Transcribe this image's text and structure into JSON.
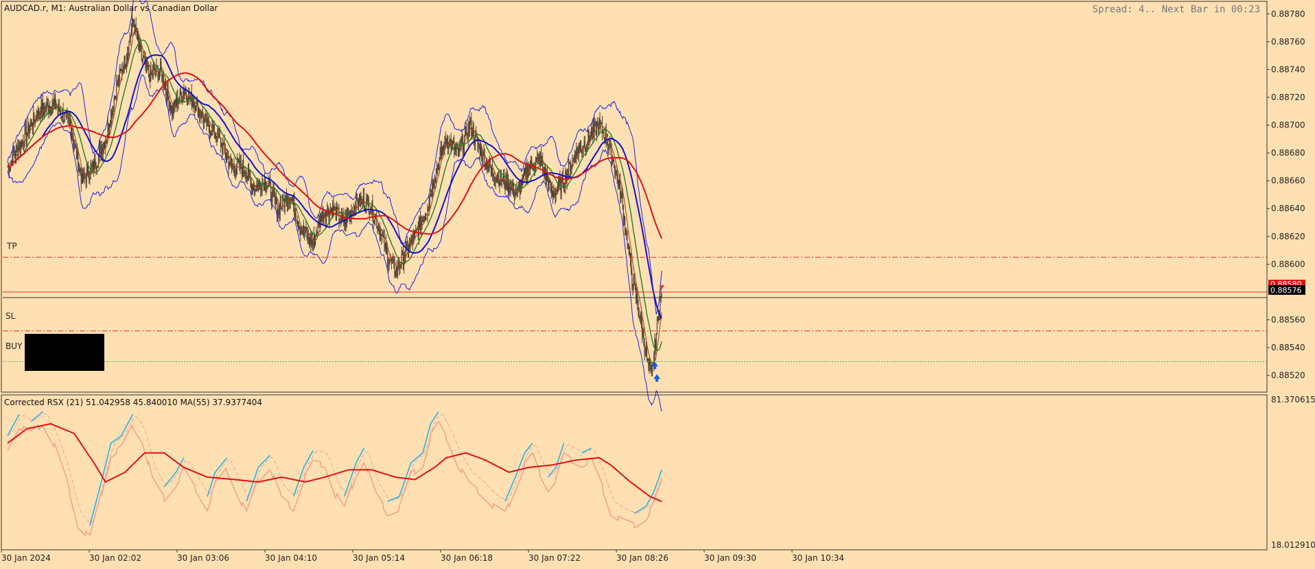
{
  "window": {
    "title": "AUDCAD.r, M1:  Australian Dollar vs Canadian Dollar",
    "status": "Spread: 4.. Next Bar in 00:23"
  },
  "colors": {
    "background": "#FFE0B2",
    "candle": "#4A3F33",
    "bollinger": "#2020E0",
    "ma_fast": "#B05020",
    "ma_mid": "#208020",
    "ma_slow": "#1010D0",
    "ma_long": "#E01010",
    "rsx_up": "#1EB4F0",
    "rsx_down": "#F5A08C",
    "rsx_ma": "#E01010",
    "level_line": "#E03030",
    "buy_line": "#40C040"
  },
  "price_axis": {
    "ticks": [
      "0.88780",
      "0.88760",
      "0.88740",
      "0.88720",
      "0.88700",
      "0.88680",
      "0.88660",
      "0.88640",
      "0.88620",
      "0.88600",
      "0.88560",
      "0.88540",
      "0.88520"
    ],
    "ask_label": "0.88580",
    "bid_label": "0.88576"
  },
  "levels": {
    "tp_label": "TP",
    "sl_label": "SL",
    "buy_label": "BUY",
    "tp": 0.88605,
    "sl": 0.88552,
    "buy": 0.8853,
    "ask": 0.8858,
    "bid": 0.88576
  },
  "time_axis": {
    "labels": [
      "30 Jan 2024",
      "30 Jan 02:02",
      "30 Jan 03:06",
      "30 Jan 04:10",
      "30 Jan 05:14",
      "30 Jan 06:18",
      "30 Jan 07:22",
      "30 Jan 08:26",
      "30 Jan 09:30",
      "30 Jan 10:34"
    ]
  },
  "indicator": {
    "title": "Corrected RSX (21) 51.042958 45.840010 MA(55) 37.9377404",
    "axis_max": "81.370615",
    "axis_min": "18.012910"
  },
  "chart_data": {
    "type": "line",
    "symbol": "AUDCAD.r",
    "timeframe": "M1",
    "ylim": [
      0.88508,
      0.88789
    ],
    "indicator_ylim": [
      18.01291,
      81.370615
    ],
    "price_close": [
      {
        "t": 0,
        "v": 0.8867
      },
      {
        "t": 20,
        "v": 0.8869
      },
      {
        "t": 40,
        "v": 0.8871
      },
      {
        "t": 60,
        "v": 0.88715
      },
      {
        "t": 80,
        "v": 0.887
      },
      {
        "t": 95,
        "v": 0.8866
      },
      {
        "t": 110,
        "v": 0.8867
      },
      {
        "t": 125,
        "v": 0.8869
      },
      {
        "t": 140,
        "v": 0.8873
      },
      {
        "t": 152,
        "v": 0.8875
      },
      {
        "t": 160,
        "v": 0.88775
      },
      {
        "t": 170,
        "v": 0.8875
      },
      {
        "t": 182,
        "v": 0.88735
      },
      {
        "t": 195,
        "v": 0.8874
      },
      {
        "t": 210,
        "v": 0.8871
      },
      {
        "t": 225,
        "v": 0.88725
      },
      {
        "t": 240,
        "v": 0.88715
      },
      {
        "t": 255,
        "v": 0.887
      },
      {
        "t": 270,
        "v": 0.8869
      },
      {
        "t": 285,
        "v": 0.8867
      },
      {
        "t": 300,
        "v": 0.8867
      },
      {
        "t": 315,
        "v": 0.88655
      },
      {
        "t": 330,
        "v": 0.8866
      },
      {
        "t": 345,
        "v": 0.8864
      },
      {
        "t": 360,
        "v": 0.8865
      },
      {
        "t": 375,
        "v": 0.88625
      },
      {
        "t": 390,
        "v": 0.88615
      },
      {
        "t": 400,
        "v": 0.88635
      },
      {
        "t": 415,
        "v": 0.8864
      },
      {
        "t": 430,
        "v": 0.8863
      },
      {
        "t": 445,
        "v": 0.88645
      },
      {
        "t": 460,
        "v": 0.88645
      },
      {
        "t": 475,
        "v": 0.88625
      },
      {
        "t": 485,
        "v": 0.88605
      },
      {
        "t": 495,
        "v": 0.88595
      },
      {
        "t": 505,
        "v": 0.88605
      },
      {
        "t": 520,
        "v": 0.8862
      },
      {
        "t": 535,
        "v": 0.8864
      },
      {
        "t": 548,
        "v": 0.8867
      },
      {
        "t": 560,
        "v": 0.8869
      },
      {
        "t": 575,
        "v": 0.8868
      },
      {
        "t": 590,
        "v": 0.887
      },
      {
        "t": 605,
        "v": 0.8868
      },
      {
        "t": 620,
        "v": 0.88665
      },
      {
        "t": 635,
        "v": 0.8866
      },
      {
        "t": 650,
        "v": 0.8865
      },
      {
        "t": 665,
        "v": 0.8867
      },
      {
        "t": 680,
        "v": 0.88675
      },
      {
        "t": 695,
        "v": 0.8865
      },
      {
        "t": 710,
        "v": 0.8866
      },
      {
        "t": 725,
        "v": 0.8868
      },
      {
        "t": 740,
        "v": 0.8869
      },
      {
        "t": 755,
        "v": 0.887
      },
      {
        "t": 765,
        "v": 0.8869
      },
      {
        "t": 775,
        "v": 0.8867
      },
      {
        "t": 783,
        "v": 0.8865
      },
      {
        "t": 790,
        "v": 0.8862
      },
      {
        "t": 797,
        "v": 0.8859
      },
      {
        "t": 805,
        "v": 0.8857
      },
      {
        "t": 812,
        "v": 0.88545
      },
      {
        "t": 817,
        "v": 0.88528
      },
      {
        "t": 822,
        "v": 0.8852
      },
      {
        "t": 827,
        "v": 0.88545
      },
      {
        "t": 832,
        "v": 0.8857
      },
      {
        "t": 835,
        "v": 0.88576
      }
    ],
    "rsx": [
      {
        "t": 0,
        "v": 65
      },
      {
        "t": 15,
        "v": 74
      },
      {
        "t": 30,
        "v": 71
      },
      {
        "t": 45,
        "v": 75
      },
      {
        "t": 60,
        "v": 66
      },
      {
        "t": 75,
        "v": 52
      },
      {
        "t": 90,
        "v": 33
      },
      {
        "t": 105,
        "v": 28
      },
      {
        "t": 118,
        "v": 44
      },
      {
        "t": 132,
        "v": 62
      },
      {
        "t": 145,
        "v": 65
      },
      {
        "t": 160,
        "v": 74
      },
      {
        "t": 172,
        "v": 68
      },
      {
        "t": 185,
        "v": 52
      },
      {
        "t": 200,
        "v": 44
      },
      {
        "t": 215,
        "v": 50
      },
      {
        "t": 225,
        "v": 56
      },
      {
        "t": 240,
        "v": 48
      },
      {
        "t": 255,
        "v": 40
      },
      {
        "t": 265,
        "v": 50
      },
      {
        "t": 280,
        "v": 56
      },
      {
        "t": 295,
        "v": 45
      },
      {
        "t": 305,
        "v": 38
      },
      {
        "t": 320,
        "v": 52
      },
      {
        "t": 335,
        "v": 57
      },
      {
        "t": 350,
        "v": 44
      },
      {
        "t": 365,
        "v": 40
      },
      {
        "t": 378,
        "v": 52
      },
      {
        "t": 390,
        "v": 59
      },
      {
        "t": 405,
        "v": 58
      },
      {
        "t": 418,
        "v": 46
      },
      {
        "t": 430,
        "v": 40
      },
      {
        "t": 445,
        "v": 54
      },
      {
        "t": 455,
        "v": 60
      },
      {
        "t": 470,
        "v": 46
      },
      {
        "t": 485,
        "v": 38
      },
      {
        "t": 500,
        "v": 40
      },
      {
        "t": 515,
        "v": 54
      },
      {
        "t": 530,
        "v": 58
      },
      {
        "t": 540,
        "v": 70
      },
      {
        "t": 550,
        "v": 75
      },
      {
        "t": 562,
        "v": 68
      },
      {
        "t": 575,
        "v": 58
      },
      {
        "t": 590,
        "v": 50
      },
      {
        "t": 605,
        "v": 46
      },
      {
        "t": 620,
        "v": 41
      },
      {
        "t": 635,
        "v": 38
      },
      {
        "t": 648,
        "v": 48
      },
      {
        "t": 660,
        "v": 58
      },
      {
        "t": 670,
        "v": 62
      },
      {
        "t": 680,
        "v": 54
      },
      {
        "t": 690,
        "v": 48
      },
      {
        "t": 700,
        "v": 52
      },
      {
        "t": 710,
        "v": 62
      },
      {
        "t": 720,
        "v": 60
      },
      {
        "t": 733,
        "v": 58
      },
      {
        "t": 745,
        "v": 60
      },
      {
        "t": 758,
        "v": 50
      },
      {
        "t": 770,
        "v": 38
      },
      {
        "t": 785,
        "v": 35
      },
      {
        "t": 800,
        "v": 33
      },
      {
        "t": 815,
        "v": 36
      },
      {
        "t": 825,
        "v": 42
      },
      {
        "t": 835,
        "v": 51.04
      }
    ],
    "rsx_ma": [
      {
        "t": 0,
        "v": 62
      },
      {
        "t": 25,
        "v": 68
      },
      {
        "t": 55,
        "v": 70
      },
      {
        "t": 85,
        "v": 66
      },
      {
        "t": 110,
        "v": 54
      },
      {
        "t": 125,
        "v": 46
      },
      {
        "t": 150,
        "v": 50
      },
      {
        "t": 175,
        "v": 58
      },
      {
        "t": 200,
        "v": 58
      },
      {
        "t": 225,
        "v": 52
      },
      {
        "t": 255,
        "v": 48
      },
      {
        "t": 290,
        "v": 47
      },
      {
        "t": 320,
        "v": 46
      },
      {
        "t": 350,
        "v": 48
      },
      {
        "t": 380,
        "v": 46
      },
      {
        "t": 405,
        "v": 48
      },
      {
        "t": 435,
        "v": 51
      },
      {
        "t": 465,
        "v": 51
      },
      {
        "t": 495,
        "v": 48
      },
      {
        "t": 520,
        "v": 47
      },
      {
        "t": 545,
        "v": 52
      },
      {
        "t": 560,
        "v": 56
      },
      {
        "t": 585,
        "v": 58
      },
      {
        "t": 610,
        "v": 55
      },
      {
        "t": 640,
        "v": 50
      },
      {
        "t": 665,
        "v": 52
      },
      {
        "t": 695,
        "v": 53
      },
      {
        "t": 725,
        "v": 55
      },
      {
        "t": 755,
        "v": 56
      },
      {
        "t": 770,
        "v": 53
      },
      {
        "t": 795,
        "v": 46
      },
      {
        "t": 820,
        "v": 40
      },
      {
        "t": 835,
        "v": 37.94
      }
    ]
  }
}
